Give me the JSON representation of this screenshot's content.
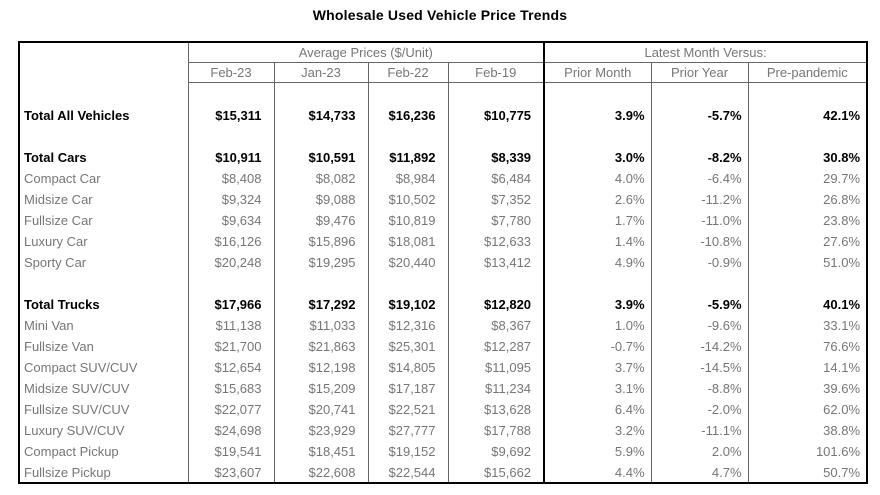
{
  "title": "Wholesale Used Vehicle Price Trends",
  "colors": {
    "background": "#ffffff",
    "text_regular": "#767676",
    "text_bold": "#000000",
    "border_thin": "#666666",
    "border_thick": "#000000"
  },
  "table": {
    "group_headers": [
      "Average Prices ($/Unit)",
      "Latest Month Versus:"
    ],
    "columns": [
      "Feb-23",
      "Jan-23",
      "Feb-22",
      "Feb-19",
      "Prior Month",
      "Prior Year",
      "Pre-pandemic"
    ],
    "rows": [
      {
        "type": "spacer"
      },
      {
        "type": "data",
        "bold": true,
        "label": "Total All Vehicles",
        "values": [
          "$15,311",
          "$14,733",
          "$16,236",
          "$10,775",
          "3.9%",
          "-5.7%",
          "42.1%"
        ]
      },
      {
        "type": "spacer"
      },
      {
        "type": "data",
        "bold": true,
        "label": "Total Cars",
        "values": [
          "$10,911",
          "$10,591",
          "$11,892",
          "$8,339",
          "3.0%",
          "-8.2%",
          "30.8%"
        ]
      },
      {
        "type": "data",
        "bold": false,
        "label": "Compact Car",
        "values": [
          "$8,408",
          "$8,082",
          "$8,984",
          "$6,484",
          "4.0%",
          "-6.4%",
          "29.7%"
        ]
      },
      {
        "type": "data",
        "bold": false,
        "label": "Midsize Car",
        "values": [
          "$9,324",
          "$9,088",
          "$10,502",
          "$7,352",
          "2.6%",
          "-11.2%",
          "26.8%"
        ]
      },
      {
        "type": "data",
        "bold": false,
        "label": "Fullsize Car",
        "values": [
          "$9,634",
          "$9,476",
          "$10,819",
          "$7,780",
          "1.7%",
          "-11.0%",
          "23.8%"
        ]
      },
      {
        "type": "data",
        "bold": false,
        "label": "Luxury Car",
        "values": [
          "$16,126",
          "$15,896",
          "$18,081",
          "$12,633",
          "1.4%",
          "-10.8%",
          "27.6%"
        ]
      },
      {
        "type": "data",
        "bold": false,
        "label": "Sporty Car",
        "values": [
          "$20,248",
          "$19,295",
          "$20,440",
          "$13,412",
          "4.9%",
          "-0.9%",
          "51.0%"
        ]
      },
      {
        "type": "spacer"
      },
      {
        "type": "data",
        "bold": true,
        "label": "Total Trucks",
        "values": [
          "$17,966",
          "$17,292",
          "$19,102",
          "$12,820",
          "3.9%",
          "-5.9%",
          "40.1%"
        ]
      },
      {
        "type": "data",
        "bold": false,
        "label": "Mini Van",
        "values": [
          "$11,138",
          "$11,033",
          "$12,316",
          "$8,367",
          "1.0%",
          "-9.6%",
          "33.1%"
        ]
      },
      {
        "type": "data",
        "bold": false,
        "label": "Fullsize Van",
        "values": [
          "$21,700",
          "$21,863",
          "$25,301",
          "$12,287",
          "-0.7%",
          "-14.2%",
          "76.6%"
        ]
      },
      {
        "type": "data",
        "bold": false,
        "label": "Compact SUV/CUV",
        "values": [
          "$12,654",
          "$12,198",
          "$14,805",
          "$11,095",
          "3.7%",
          "-14.5%",
          "14.1%"
        ]
      },
      {
        "type": "data",
        "bold": false,
        "label": "Midsize SUV/CUV",
        "values": [
          "$15,683",
          "$15,209",
          "$17,187",
          "$11,234",
          "3.1%",
          "-8.8%",
          "39.6%"
        ]
      },
      {
        "type": "data",
        "bold": false,
        "label": "Fullsize SUV/CUV",
        "values": [
          "$22,077",
          "$20,741",
          "$22,521",
          "$13,628",
          "6.4%",
          "-2.0%",
          "62.0%"
        ]
      },
      {
        "type": "data",
        "bold": false,
        "label": "Luxury SUV/CUV",
        "values": [
          "$24,698",
          "$23,929",
          "$27,777",
          "$17,788",
          "3.2%",
          "-11.1%",
          "38.8%"
        ]
      },
      {
        "type": "data",
        "bold": false,
        "label": "Compact Pickup",
        "values": [
          "$19,541",
          "$18,451",
          "$19,152",
          "$9,692",
          "5.9%",
          "2.0%",
          "101.6%"
        ]
      },
      {
        "type": "data",
        "bold": false,
        "label": "Fullsize Pickup",
        "values": [
          "$23,607",
          "$22,608",
          "$22,544",
          "$15,662",
          "4.4%",
          "4.7%",
          "50.7%"
        ]
      }
    ]
  }
}
